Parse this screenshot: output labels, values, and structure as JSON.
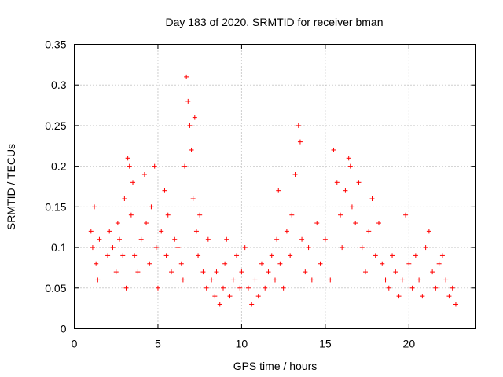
{
  "chart_data": {
    "type": "scatter",
    "title": "Day 183 of 2020, SRMTID for receiver bman",
    "xlabel": "GPS time / hours",
    "ylabel": "SRMTID / TECUs",
    "xlim": [
      0,
      24
    ],
    "ylim": [
      0,
      0.35
    ],
    "xticks": [
      0,
      5,
      10,
      15,
      20
    ],
    "yticks": [
      0,
      0.05,
      0.1,
      0.15,
      0.2,
      0.25,
      0.3,
      0.35
    ],
    "xtick_labels": [
      "0",
      "5",
      "10",
      "15",
      "20"
    ],
    "ytick_labels": [
      "0",
      "0.05",
      "0.1",
      "0.15",
      "0.2",
      "0.25",
      "0.3",
      "0.35"
    ],
    "grid": true,
    "marker": "+",
    "color": "#ff0000",
    "series": [
      {
        "name": "SRMTID",
        "points": [
          [
            1.0,
            0.12
          ],
          [
            1.1,
            0.1
          ],
          [
            1.2,
            0.15
          ],
          [
            1.3,
            0.08
          ],
          [
            1.4,
            0.06
          ],
          [
            1.5,
            0.11
          ],
          [
            2.0,
            0.09
          ],
          [
            2.1,
            0.12
          ],
          [
            2.3,
            0.1
          ],
          [
            2.5,
            0.07
          ],
          [
            2.6,
            0.13
          ],
          [
            2.7,
            0.11
          ],
          [
            2.9,
            0.09
          ],
          [
            3.0,
            0.16
          ],
          [
            3.1,
            0.05
          ],
          [
            3.2,
            0.21
          ],
          [
            3.3,
            0.2
          ],
          [
            3.4,
            0.14
          ],
          [
            3.5,
            0.18
          ],
          [
            3.6,
            0.09
          ],
          [
            3.8,
            0.07
          ],
          [
            4.0,
            0.11
          ],
          [
            4.2,
            0.19
          ],
          [
            4.3,
            0.13
          ],
          [
            4.5,
            0.08
          ],
          [
            4.6,
            0.15
          ],
          [
            4.8,
            0.2
          ],
          [
            4.9,
            0.1
          ],
          [
            5.0,
            0.05
          ],
          [
            5.2,
            0.12
          ],
          [
            5.4,
            0.17
          ],
          [
            5.5,
            0.09
          ],
          [
            5.6,
            0.14
          ],
          [
            5.8,
            0.07
          ],
          [
            6.0,
            0.11
          ],
          [
            6.2,
            0.1
          ],
          [
            6.4,
            0.08
          ],
          [
            6.5,
            0.06
          ],
          [
            6.6,
            0.2
          ],
          [
            6.7,
            0.31
          ],
          [
            6.8,
            0.28
          ],
          [
            6.9,
            0.25
          ],
          [
            7.0,
            0.22
          ],
          [
            7.1,
            0.16
          ],
          [
            7.2,
            0.26
          ],
          [
            7.3,
            0.12
          ],
          [
            7.4,
            0.09
          ],
          [
            7.5,
            0.14
          ],
          [
            7.7,
            0.07
          ],
          [
            7.9,
            0.05
          ],
          [
            8.0,
            0.11
          ],
          [
            8.2,
            0.06
          ],
          [
            8.4,
            0.04
          ],
          [
            8.5,
            0.07
          ],
          [
            8.7,
            0.03
          ],
          [
            8.9,
            0.05
          ],
          [
            9.0,
            0.08
          ],
          [
            9.1,
            0.11
          ],
          [
            9.3,
            0.04
          ],
          [
            9.5,
            0.06
          ],
          [
            9.7,
            0.09
          ],
          [
            9.9,
            0.05
          ],
          [
            10.0,
            0.07
          ],
          [
            10.2,
            0.1
          ],
          [
            10.4,
            0.05
          ],
          [
            10.6,
            0.03
          ],
          [
            10.8,
            0.06
          ],
          [
            11.0,
            0.04
          ],
          [
            11.2,
            0.08
          ],
          [
            11.4,
            0.05
          ],
          [
            11.6,
            0.07
          ],
          [
            11.8,
            0.09
          ],
          [
            12.0,
            0.06
          ],
          [
            12.1,
            0.11
          ],
          [
            12.2,
            0.17
          ],
          [
            12.3,
            0.08
          ],
          [
            12.5,
            0.05
          ],
          [
            12.7,
            0.12
          ],
          [
            12.9,
            0.09
          ],
          [
            13.0,
            0.14
          ],
          [
            13.2,
            0.19
          ],
          [
            13.4,
            0.25
          ],
          [
            13.5,
            0.23
          ],
          [
            13.6,
            0.11
          ],
          [
            13.8,
            0.07
          ],
          [
            14.0,
            0.1
          ],
          [
            14.2,
            0.06
          ],
          [
            14.5,
            0.13
          ],
          [
            14.7,
            0.08
          ],
          [
            15.0,
            0.11
          ],
          [
            15.3,
            0.06
          ],
          [
            15.5,
            0.22
          ],
          [
            15.7,
            0.18
          ],
          [
            15.9,
            0.14
          ],
          [
            16.0,
            0.1
          ],
          [
            16.2,
            0.17
          ],
          [
            16.4,
            0.21
          ],
          [
            16.5,
            0.2
          ],
          [
            16.6,
            0.15
          ],
          [
            16.8,
            0.13
          ],
          [
            17.0,
            0.18
          ],
          [
            17.2,
            0.1
          ],
          [
            17.4,
            0.07
          ],
          [
            17.6,
            0.12
          ],
          [
            17.8,
            0.16
          ],
          [
            18.0,
            0.09
          ],
          [
            18.2,
            0.13
          ],
          [
            18.4,
            0.08
          ],
          [
            18.6,
            0.06
          ],
          [
            18.8,
            0.05
          ],
          [
            19.0,
            0.09
          ],
          [
            19.2,
            0.07
          ],
          [
            19.4,
            0.04
          ],
          [
            19.6,
            0.06
          ],
          [
            19.8,
            0.14
          ],
          [
            20.0,
            0.08
          ],
          [
            20.2,
            0.05
          ],
          [
            20.4,
            0.09
          ],
          [
            20.6,
            0.06
          ],
          [
            20.8,
            0.04
          ],
          [
            21.0,
            0.1
          ],
          [
            21.2,
            0.12
          ],
          [
            21.4,
            0.07
          ],
          [
            21.6,
            0.05
          ],
          [
            21.8,
            0.08
          ],
          [
            22.0,
            0.09
          ],
          [
            22.2,
            0.06
          ],
          [
            22.4,
            0.04
          ],
          [
            22.6,
            0.05
          ],
          [
            22.8,
            0.03
          ]
        ]
      }
    ]
  }
}
